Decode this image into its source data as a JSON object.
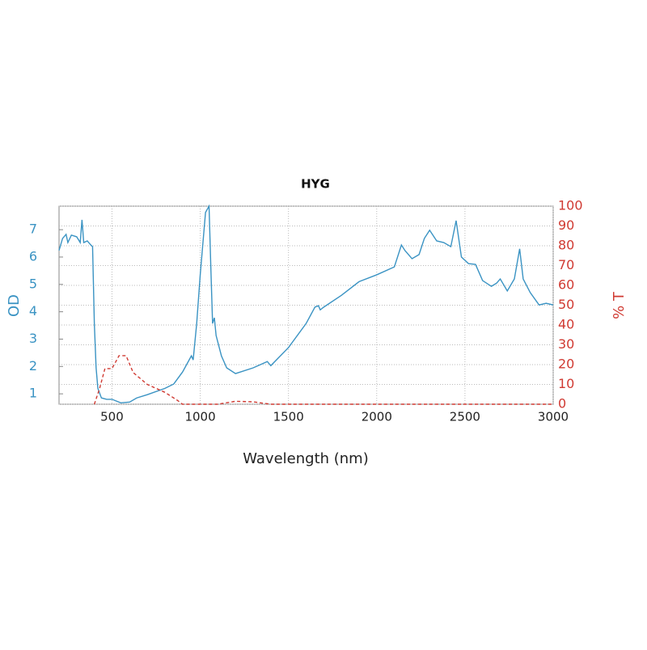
{
  "chart_data": {
    "type": "line",
    "title": "HYG",
    "xlabel": "Wavelength (nm)",
    "ylabel": "OD",
    "y2label": "% T",
    "xlim": [
      200,
      3000
    ],
    "xticks": [
      500,
      1000,
      1500,
      2000,
      2500,
      3000
    ],
    "ylim": [
      0.62,
      7.86
    ],
    "yticks": [
      1,
      2,
      3,
      4,
      5,
      6,
      7
    ],
    "y2lim": [
      0,
      100
    ],
    "y2ticks": [
      0,
      10,
      20,
      30,
      40,
      50,
      60,
      70,
      80,
      90,
      100
    ],
    "grid": true,
    "series": [
      {
        "name": "OD",
        "color": "#3a93c3",
        "dash": false,
        "x": [
          200,
          220,
          240,
          250,
          270,
          300,
          320,
          330,
          340,
          360,
          380,
          390,
          400,
          410,
          420,
          440,
          470,
          500,
          550,
          600,
          640,
          700,
          800,
          850,
          900,
          950,
          960,
          980,
          1000,
          1030,
          1050,
          1060,
          1070,
          1080,
          1090,
          1120,
          1150,
          1200,
          1300,
          1380,
          1400,
          1500,
          1600,
          1650,
          1670,
          1680,
          1700,
          1800,
          1900,
          2000,
          2100,
          2140,
          2160,
          2200,
          2240,
          2270,
          2300,
          2340,
          2380,
          2420,
          2450,
          2480,
          2520,
          2560,
          2600,
          2650,
          2680,
          2700,
          2740,
          2780,
          2810,
          2830,
          2870,
          2920,
          2960,
          3000
        ],
        "values": [
          6.24,
          6.68,
          6.83,
          6.53,
          6.8,
          6.74,
          6.53,
          7.36,
          6.53,
          6.59,
          6.44,
          6.38,
          3.57,
          1.95,
          1.2,
          0.85,
          0.8,
          0.8,
          0.67,
          0.7,
          0.85,
          0.97,
          1.2,
          1.36,
          1.8,
          2.39,
          2.24,
          3.57,
          5.35,
          7.63,
          7.86,
          5.64,
          3.57,
          3.78,
          3.13,
          2.39,
          1.95,
          1.74,
          1.95,
          2.18,
          2.03,
          2.69,
          3.57,
          4.17,
          4.22,
          4.07,
          4.17,
          4.6,
          5.1,
          5.35,
          5.64,
          6.44,
          6.24,
          5.94,
          6.09,
          6.68,
          6.98,
          6.59,
          6.53,
          6.38,
          7.33,
          6.0,
          5.76,
          5.73,
          5.14,
          4.93,
          5.05,
          5.2,
          4.76,
          5.2,
          6.3,
          5.2,
          4.7,
          4.25,
          4.31,
          4.25
        ]
      },
      {
        "name": "% T",
        "color": "#d03a32",
        "dash": true,
        "axis": "y2",
        "x": [
          400,
          430,
          460,
          500,
          540,
          580,
          620,
          700,
          800,
          870,
          900,
          1100,
          1200,
          1300,
          1400,
          3000
        ],
        "values": [
          0,
          8,
          18,
          18,
          24.5,
          24.5,
          16,
          10,
          6,
          2,
          0,
          0,
          1.5,
          1.2,
          0,
          0
        ]
      }
    ]
  }
}
